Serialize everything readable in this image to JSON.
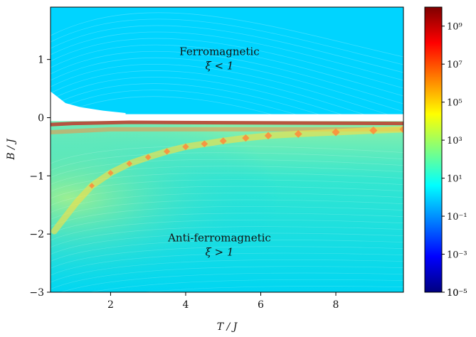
{
  "chart_data": {
    "type": "heatmap",
    "title": "",
    "xlabel": "T / J",
    "ylabel": "B / J",
    "xlim": [
      0.4,
      9.8
    ],
    "ylim": [
      -3.0,
      1.9
    ],
    "x_ticks": [
      2,
      4,
      6,
      8
    ],
    "y_ticks": [
      1,
      0,
      -1,
      -2,
      -3
    ],
    "x_tick_labels": [
      "2",
      "4",
      "6",
      "8"
    ],
    "y_tick_labels": [
      "1",
      "0",
      "−1",
      "−2",
      "−3"
    ],
    "colormap": "jet",
    "colorbar": {
      "scale": "log",
      "range_exponent": [
        -5,
        10
      ],
      "ticks": [
        "10⁹",
        "10⁷",
        "10⁵",
        "10³",
        "10¹",
        "10⁻¹",
        "10⁻³",
        "10⁻⁵",
        "10⁻⁵"
      ],
      "tick_exponents": [
        9,
        7,
        5,
        3,
        1,
        -1,
        -3,
        -5,
        -5
      ]
    },
    "regions": [
      {
        "label": "Ferromagnetic",
        "condition": "ξ < 1",
        "T": 4.9,
        "B": 1.0
      },
      {
        "label": "Anti-ferromagnetic",
        "condition": "ξ > 1",
        "T": 4.9,
        "B": -2.2
      }
    ],
    "peak_curve": {
      "T": [
        0.5,
        0.8,
        1.1,
        1.5,
        2.0,
        2.5,
        3.0,
        3.5,
        4.0,
        4.5,
        5.0,
        5.6,
        6.2,
        7.0,
        8.0,
        9.0,
        9.8
      ],
      "B": [
        -1.95,
        -1.7,
        -1.45,
        -1.17,
        -0.95,
        -0.79,
        -0.68,
        -0.58,
        -0.5,
        -0.45,
        -0.4,
        -0.35,
        -0.31,
        -0.28,
        -0.25,
        -0.22,
        -0.2
      ]
    },
    "grid": false
  },
  "colors": {
    "background_cyan": "#00d4ff",
    "ridge_yellow": "#f0e04a",
    "ridge_orange": "#ff8a3a",
    "boundary_red": "#c0392b"
  }
}
